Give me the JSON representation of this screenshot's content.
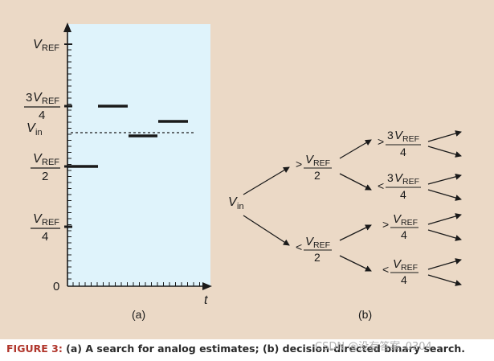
{
  "caption": {
    "label": "FIGURE 3:",
    "text": " (a) A search for analog estimates; (b) decision-directed binary search."
  },
  "watermark": "CSDN @没有答案_0304",
  "panel_a": {
    "label": "(a)",
    "y_labels": {
      "vref_v": "V",
      "vref_sub": "REF",
      "three": "3",
      "four": "4",
      "two": "2",
      "vin_v": "V",
      "vin_sub": "in",
      "zero": "0"
    },
    "x_label": "t"
  },
  "panel_b": {
    "label": "(b)",
    "vin_v": "V",
    "vin_sub": "in",
    "gt": ">",
    "lt": "<",
    "v": "V",
    "ref": "REF",
    "two": "2",
    "three": "3",
    "four": "4"
  },
  "colors": {
    "panel_bg": "#ebd9c6",
    "plot_bg": "#dff3fb",
    "caption_label": "#b0352b"
  }
}
